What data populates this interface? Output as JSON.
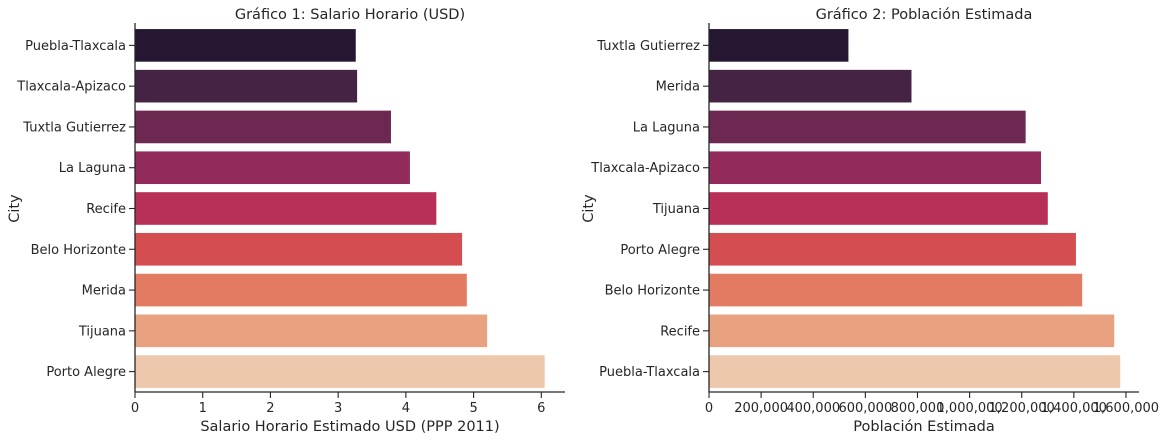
{
  "chart_data": [
    {
      "type": "bar",
      "orientation": "horizontal",
      "title": "Gráfico 1: Salario Horario (USD)",
      "xlabel": "Salario Horario Estimado USD (PPP 2011)",
      "ylabel": "City",
      "categories": [
        "Puebla-Tlaxcala",
        "Tlaxcala-Apizaco",
        "Tuxtla Gutierrez",
        "La Laguna",
        "Recife",
        "Belo Horizonte",
        "Merida",
        "Tijuana",
        "Porto Alegre"
      ],
      "values": [
        3.26,
        3.28,
        3.78,
        4.06,
        4.45,
        4.83,
        4.9,
        5.2,
        6.05
      ],
      "xlim": [
        0,
        6.35
      ],
      "xticks": [
        0,
        1,
        2,
        3,
        4,
        5,
        6
      ],
      "xtick_labels": [
        "0",
        "1",
        "2",
        "3",
        "4",
        "5",
        "6"
      ],
      "grid": false,
      "colors": [
        "#251632",
        "#452344",
        "#6c2851",
        "#922b5c",
        "#b82f58",
        "#d44e51",
        "#e27b62",
        "#e8a27f",
        "#eec8ad"
      ]
    },
    {
      "type": "bar",
      "orientation": "horizontal",
      "title": "Gráfico 2: Población Estimada",
      "xlabel": "Población Estimada",
      "ylabel": "City",
      "categories": [
        "Tuxtla Gutierrez",
        "Merida",
        "La Laguna",
        "Tlaxcala-Apizaco",
        "Tijuana",
        "Porto Alegre",
        "Belo Horizonte",
        "Recife",
        "Puebla-Tlaxcala"
      ],
      "values": [
        535000,
        777000,
        1215000,
        1274000,
        1300000,
        1408000,
        1432000,
        1555000,
        1578000
      ],
      "xlim": [
        0,
        1650000
      ],
      "xticks": [
        0,
        200000,
        400000,
        600000,
        800000,
        1000000,
        1200000,
        1400000,
        1600000
      ],
      "xtick_labels": [
        "0",
        "200,000",
        "400,000",
        "600,000",
        "800,000",
        "1,000,000",
        "1,200,000",
        "1,400,000",
        "1,600,000"
      ],
      "grid": false,
      "colors": [
        "#251632",
        "#452344",
        "#6c2851",
        "#922b5c",
        "#b82f58",
        "#d44e51",
        "#e27b62",
        "#e8a27f",
        "#eec8ad"
      ]
    }
  ]
}
